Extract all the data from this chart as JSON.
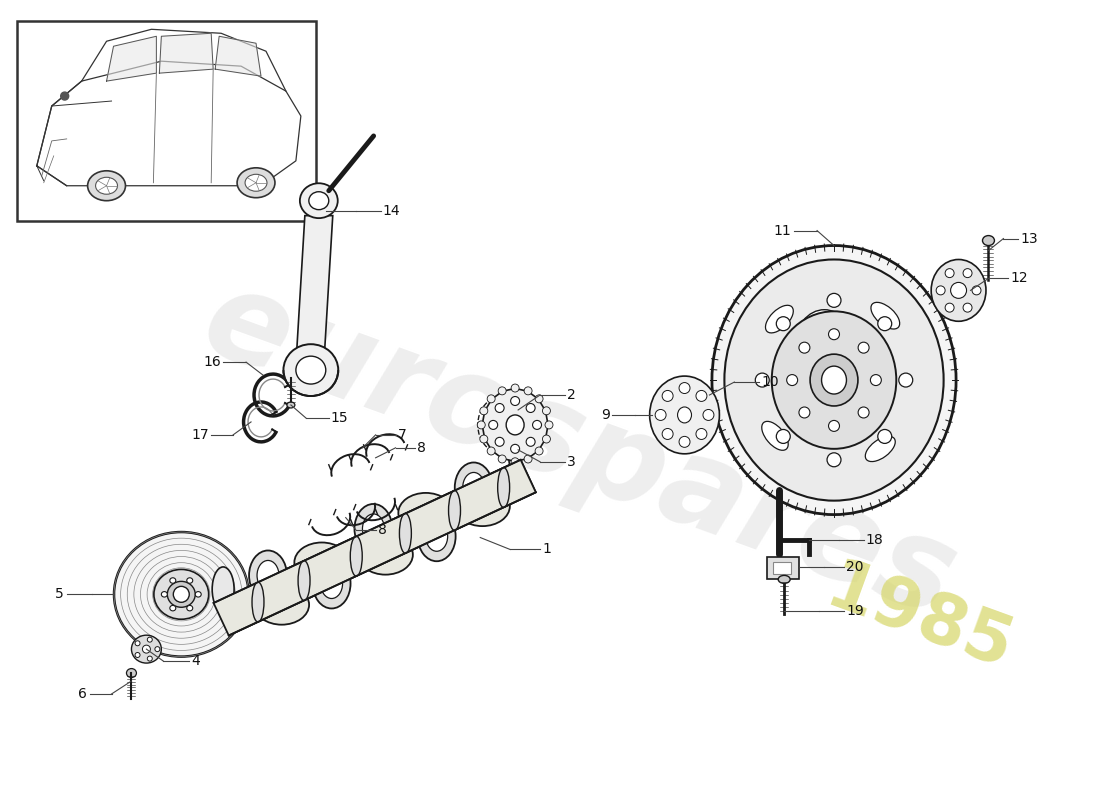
{
  "background_color": "#ffffff",
  "line_color": "#1a1a1a",
  "label_color": "#111111",
  "watermark_color": "#e0e0e0",
  "watermark_year_color": "#d8d870",
  "figsize": [
    11.0,
    8.0
  ],
  "dpi": 100
}
